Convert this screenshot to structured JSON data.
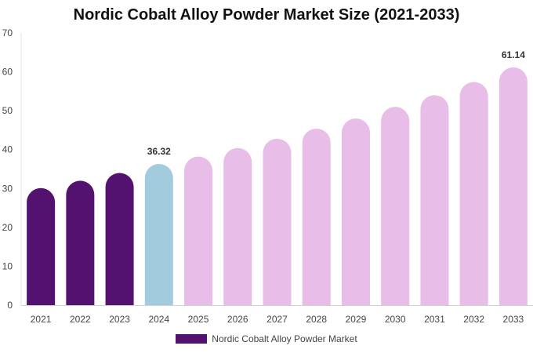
{
  "chart_data": {
    "type": "bar",
    "title": "Nordic Cobalt Alloy Powder Market Size (2021-2033)",
    "categories": [
      "2021",
      "2022",
      "2023",
      "2024",
      "2025",
      "2026",
      "2027",
      "2028",
      "2029",
      "2030",
      "2031",
      "2032",
      "2033"
    ],
    "series": [
      {
        "name": "Nordic Cobalt Alloy Powder Market",
        "values": [
          30.1,
          32.0,
          34.0,
          36.32,
          38.2,
          40.4,
          42.8,
          45.4,
          48.0,
          51.0,
          54.0,
          57.4,
          61.14
        ]
      }
    ],
    "data_labels": {
      "3": "36.32",
      "12": "61.14"
    },
    "bar_colors": [
      "#541270",
      "#541270",
      "#541270",
      "#a3cbde",
      "#e8bde8",
      "#e8bde8",
      "#e8bde8",
      "#e8bde8",
      "#e8bde8",
      "#e8bde8",
      "#e8bde8",
      "#e8bde8",
      "#e8bde8"
    ],
    "ylim": [
      0,
      70
    ],
    "yticks": [
      0,
      10,
      20,
      30,
      40,
      50,
      60,
      70
    ],
    "grid": false,
    "legend_position": "bottom",
    "xlabel": "",
    "ylabel": ""
  },
  "legend": {
    "label": "Nordic Cobalt Alloy Powder Market",
    "color": "#541270"
  }
}
